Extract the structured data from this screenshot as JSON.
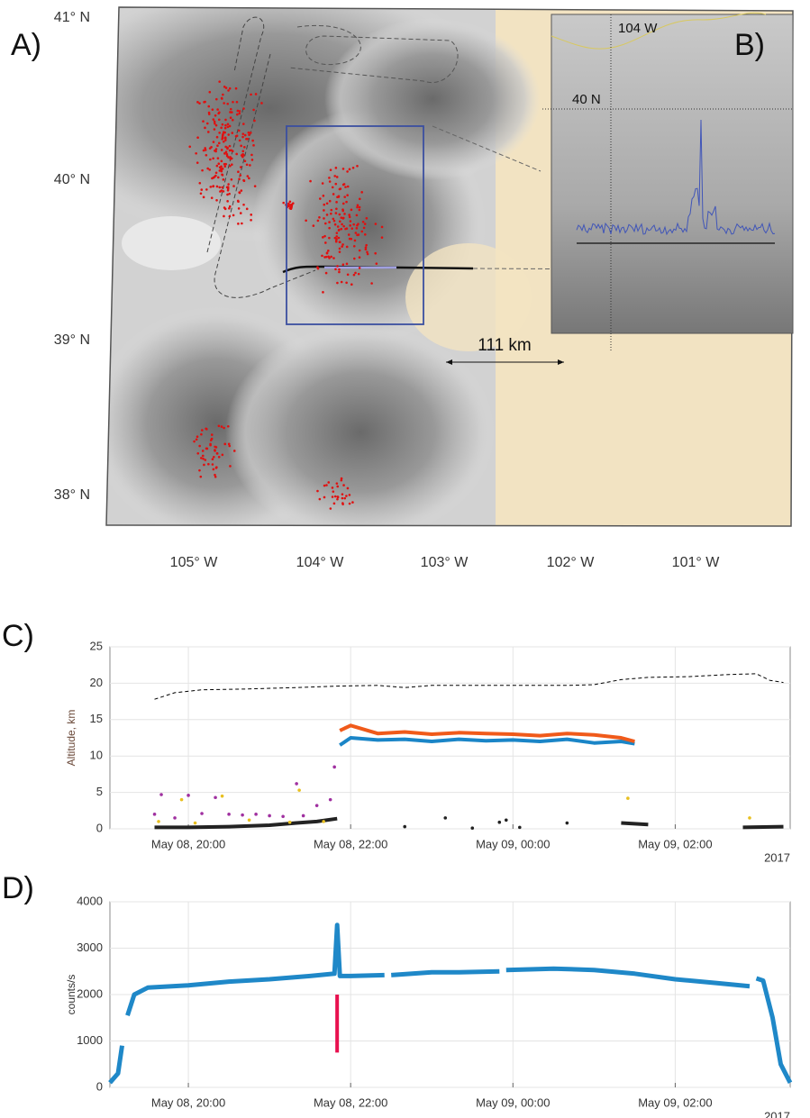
{
  "panel_labels": [
    "A)",
    "B)",
    "C)",
    "D)"
  ],
  "map": {
    "lat_labels": [
      "41° N",
      "40° N",
      "39° N",
      "38° N"
    ],
    "lon_labels": [
      "105° W",
      "104° W",
      "103° W",
      "102° W",
      "101° W"
    ],
    "scale_label": "111 km",
    "inset_lon_label": "104 W",
    "inset_lat_label": "40 N"
  },
  "chart_data": [
    {
      "type": "scatter",
      "y_label": "Altitude, km",
      "year": "2017",
      "xlim": [
        "May 08, 19:02",
        "May 09, 03:25"
      ],
      "xticks": [
        "May 08, 20:00",
        "May 08, 22:00",
        "May 09, 00:00",
        "May 09, 02:00"
      ],
      "ylim": [
        0,
        25
      ],
      "yticks": [
        0,
        5,
        10,
        15,
        20,
        25
      ],
      "grid": true,
      "series": [
        {
          "style": "dashed",
          "color": "#000000",
          "x": [
            "May 08, 19:35",
            "May 08, 19:50",
            "May 08, 20:10",
            "May 08, 20:40",
            "May 08, 21:20",
            "May 08, 21:50",
            "May 08, 22:20",
            "May 08, 22:40",
            "May 08, 23:00",
            "May 08, 23:30",
            "May 09, 00:00",
            "May 09, 00:40",
            "May 09, 01:00",
            "May 09, 01:20",
            "May 09, 01:40",
            "May 09, 02:10",
            "May 09, 02:40",
            "May 09, 03:00",
            "May 09, 03:10",
            "May 09, 03:20"
          ],
          "values": [
            17.8,
            18.7,
            19.1,
            19.2,
            19.4,
            19.6,
            19.7,
            19.4,
            19.7,
            19.7,
            19.7,
            19.7,
            19.8,
            20.5,
            20.8,
            20.9,
            21.2,
            21.3,
            20.4,
            20.1
          ]
        },
        {
          "style": "thick",
          "color": "#1a85c7",
          "x": [
            "May 08, 21:52",
            "May 08, 22:00",
            "May 08, 22:20",
            "May 08, 22:40",
            "May 08, 23:00",
            "May 08, 23:20",
            "May 08, 23:40",
            "May 09, 00:00",
            "May 09, 00:20",
            "May 09, 00:40",
            "May 09, 01:00",
            "May 09, 01:20",
            "May 09, 01:30"
          ],
          "values": [
            11.5,
            12.5,
            12.2,
            12.3,
            12.0,
            12.3,
            12.1,
            12.2,
            12.0,
            12.3,
            11.8,
            12.0,
            11.7
          ]
        },
        {
          "style": "thick",
          "color": "#f05a1a",
          "x": [
            "May 08, 21:52",
            "May 08, 22:00",
            "May 08, 22:20",
            "May 08, 22:40",
            "May 08, 23:00",
            "May 08, 23:20",
            "May 08, 23:40",
            "May 09, 00:00",
            "May 09, 00:20",
            "May 09, 00:40",
            "May 09, 01:00",
            "May 09, 01:20",
            "May 09, 01:30"
          ],
          "values": [
            13.5,
            14.2,
            13.1,
            13.3,
            13.0,
            13.2,
            13.1,
            13.0,
            12.8,
            13.1,
            12.9,
            12.5,
            12.0
          ]
        },
        {
          "style": "thick",
          "color": "#222222",
          "x": [
            "May 08, 19:35",
            "May 08, 20:00",
            "May 08, 20:30",
            "May 08, 21:00",
            "May 08, 21:20",
            "May 08, 21:35",
            "May 08, 21:50",
            "May 09, 00:00",
            "May 09, 01:20",
            "May 09, 01:40",
            "May 09, 02:00",
            "May 09, 02:50",
            "May 09, 03:20"
          ],
          "values": [
            0.2,
            0.2,
            0.3,
            0.5,
            0.8,
            1.0,
            1.4,
            null,
            0.8,
            0.6,
            null,
            0.2,
            0.3
          ]
        },
        {
          "style": "dots",
          "color": "#a030a0",
          "x": [
            "May 08, 19:35",
            "May 08, 19:40",
            "May 08, 19:50",
            "May 08, 20:00",
            "May 08, 20:10",
            "May 08, 20:20",
            "May 08, 20:30",
            "May 08, 20:40",
            "May 08, 20:50",
            "May 08, 21:00",
            "May 08, 21:10",
            "May 08, 21:20",
            "May 08, 21:25",
            "May 08, 21:35",
            "May 08, 21:45",
            "May 08, 21:48"
          ],
          "values": [
            2.0,
            4.7,
            1.5,
            4.6,
            2.1,
            4.3,
            2.0,
            1.9,
            2.0,
            1.8,
            1.7,
            6.2,
            1.8,
            3.2,
            4.0,
            8.5
          ]
        },
        {
          "style": "dots",
          "color": "#e8c020",
          "x": [
            "May 08, 19:38",
            "May 08, 19:55",
            "May 08, 20:05",
            "May 08, 20:25",
            "May 08, 20:45",
            "May 08, 21:15",
            "May 08, 21:22",
            "May 08, 21:40",
            "May 09, 01:25",
            "May 09, 02:55"
          ],
          "values": [
            1.0,
            4.0,
            0.8,
            4.5,
            1.2,
            0.9,
            5.3,
            1.0,
            4.2,
            1.5
          ]
        },
        {
          "style": "dots",
          "color": "#222222",
          "x": [
            "May 08, 22:40",
            "May 08, 23:10",
            "May 08, 23:30",
            "May 08, 23:50",
            "May 08, 23:55",
            "May 09, 00:05",
            "May 09, 00:40"
          ],
          "values": [
            0.3,
            1.5,
            0.1,
            0.9,
            1.2,
            0.2,
            0.8
          ]
        }
      ]
    },
    {
      "type": "line",
      "y_label": "counts/s",
      "year": "2017",
      "xlim": [
        "May 08, 19:02",
        "May 09, 03:25"
      ],
      "xticks": [
        "May 08, 20:00",
        "May 08, 22:00",
        "May 09, 00:00",
        "May 09, 02:00"
      ],
      "ylim": [
        0,
        4000
      ],
      "yticks": [
        0,
        1000,
        2000,
        3000,
        4000
      ],
      "grid": true,
      "series": [
        {
          "style": "noisy",
          "color": "#1f88c8",
          "x": [
            "May 08, 19:02",
            "May 08, 19:08",
            "May 08, 19:11",
            "May 08, 19:12",
            "May 08, 19:15",
            "May 08, 19:20",
            "May 08, 19:30",
            "May 08, 20:00",
            "May 08, 20:30",
            "May 08, 21:00",
            "May 08, 21:30",
            "May 08, 21:48",
            "May 08, 21:50",
            "May 08, 21:52",
            "May 08, 22:00",
            "May 08, 22:25",
            "May 08, 22:28",
            "May 08, 22:30",
            "May 08, 23:00",
            "May 08, 23:18",
            "May 08, 23:20",
            "May 08, 23:50",
            "May 08, 23:53",
            "May 08, 23:55",
            "May 09, 00:30",
            "May 09, 01:00",
            "May 09, 01:30",
            "May 09, 02:00",
            "May 09, 02:30",
            "May 09, 02:55",
            "May 09, 02:58",
            "May 09, 03:00",
            "May 09, 03:05",
            "May 09, 03:12",
            "May 09, 03:18",
            "May 09, 03:25"
          ],
          "values": [
            100,
            300,
            900,
            null,
            1550,
            2000,
            2150,
            2200,
            2280,
            2330,
            2400,
            2450,
            3500,
            2400,
            2400,
            2420,
            null,
            2420,
            2480,
            2480,
            2480,
            2500,
            null,
            2530,
            2560,
            2530,
            2450,
            2330,
            2250,
            2180,
            null,
            2350,
            2300,
            1500,
            500,
            100
          ]
        }
      ],
      "annotations": [
        {
          "x": "May 08, 21:50",
          "from": 750,
          "to": 2000,
          "color": "#e8104f"
        }
      ]
    }
  ]
}
